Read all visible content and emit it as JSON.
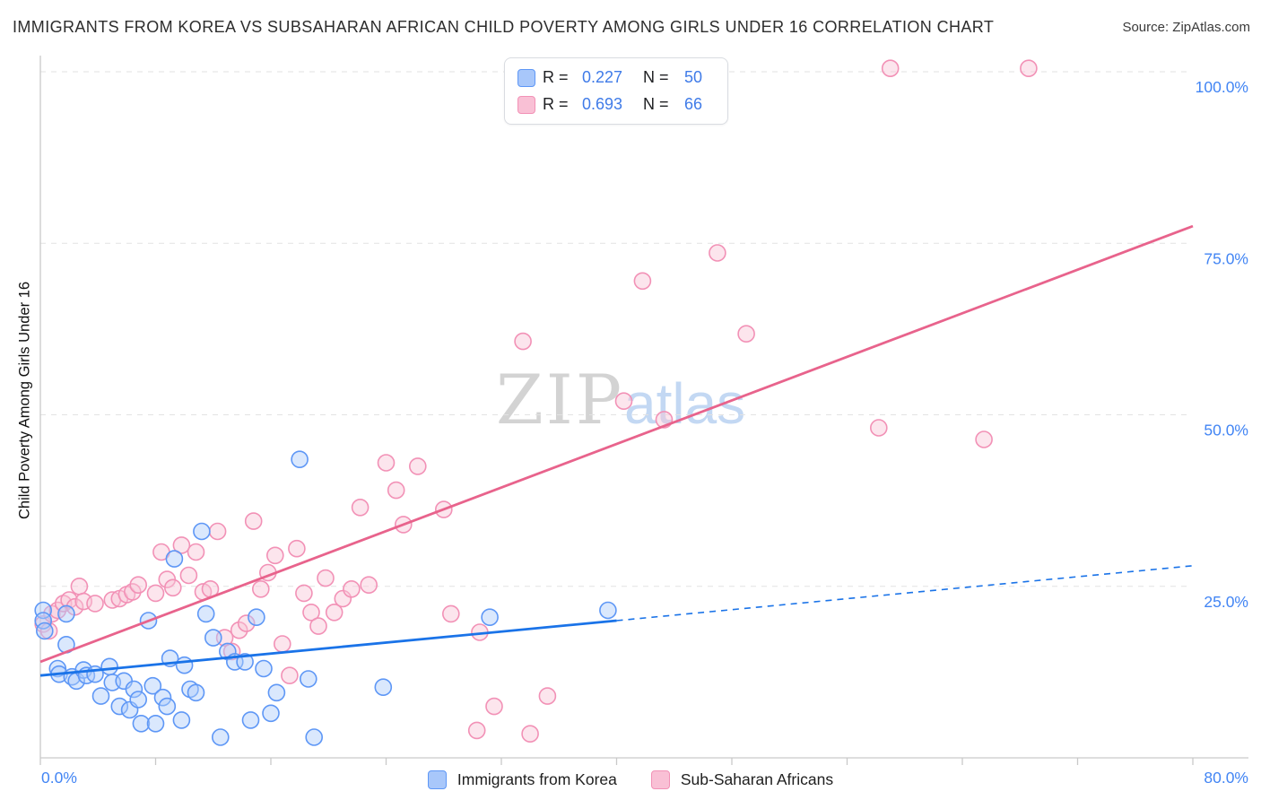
{
  "title": "IMMIGRANTS FROM KOREA VS SUBSAHARAN AFRICAN CHILD POVERTY AMONG GIRLS UNDER 16 CORRELATION CHART",
  "source": "Source: ZipAtlas.com",
  "watermark": {
    "zip": "ZIP",
    "atlas": "atlas"
  },
  "axes": {
    "y_label": "Child Poverty Among Girls Under 16",
    "x_min_label": "0.0%",
    "x_max_label": "80.0%"
  },
  "legend_box": {
    "r_label": "R =",
    "n_label": "N ="
  },
  "chart_data": {
    "type": "scatter",
    "title": "Immigrants from Korea vs Sub-Saharan African Child Poverty Among Girls Under 16",
    "xlabel": "Immigrants from Korea (%)",
    "ylabel": "Child Poverty Among Girls Under 16",
    "x_range": [
      0,
      0.8
    ],
    "y_range": [
      0,
      1.0
    ],
    "x_tick_count": 10,
    "grid": "horizontal-dashed",
    "legend_position": "top-center",
    "y_gridlines": [
      {
        "label": "100.0%",
        "value": 1.0
      },
      {
        "label": "75.0%",
        "value": 0.75
      },
      {
        "label": "50.0%",
        "value": 0.5
      },
      {
        "label": "25.0%",
        "value": 0.25
      }
    ],
    "series": [
      {
        "id": "korea",
        "name": "Immigrants from Korea",
        "r": "0.227",
        "n": "50",
        "fill_color": "#aecbfa",
        "stroke_color": "#5e97f6",
        "line_color": "#1a73e8",
        "trend": {
          "x0": 0,
          "y0": 0.12,
          "x1": 0.8,
          "y1": 0.28,
          "solid_until": 0.4
        },
        "points": [
          [
            0.002,
            0.215
          ],
          [
            0.002,
            0.2
          ],
          [
            0.003,
            0.185
          ],
          [
            0.012,
            0.13
          ],
          [
            0.013,
            0.122
          ],
          [
            0.018,
            0.21
          ],
          [
            0.018,
            0.165
          ],
          [
            0.022,
            0.118
          ],
          [
            0.025,
            0.112
          ],
          [
            0.03,
            0.128
          ],
          [
            0.032,
            0.12
          ],
          [
            0.038,
            0.122
          ],
          [
            0.042,
            0.09
          ],
          [
            0.048,
            0.133
          ],
          [
            0.05,
            0.11
          ],
          [
            0.055,
            0.075
          ],
          [
            0.058,
            0.112
          ],
          [
            0.062,
            0.07
          ],
          [
            0.065,
            0.1
          ],
          [
            0.068,
            0.085
          ],
          [
            0.07,
            0.05
          ],
          [
            0.075,
            0.2
          ],
          [
            0.078,
            0.105
          ],
          [
            0.08,
            0.05
          ],
          [
            0.085,
            0.088
          ],
          [
            0.088,
            0.075
          ],
          [
            0.09,
            0.145
          ],
          [
            0.093,
            0.29
          ],
          [
            0.098,
            0.055
          ],
          [
            0.1,
            0.135
          ],
          [
            0.104,
            0.1
          ],
          [
            0.108,
            0.095
          ],
          [
            0.112,
            0.33
          ],
          [
            0.115,
            0.21
          ],
          [
            0.12,
            0.175
          ],
          [
            0.125,
            0.03
          ],
          [
            0.13,
            0.155
          ],
          [
            0.135,
            0.14
          ],
          [
            0.142,
            0.14
          ],
          [
            0.146,
            0.055
          ],
          [
            0.15,
            0.205
          ],
          [
            0.155,
            0.13
          ],
          [
            0.16,
            0.065
          ],
          [
            0.164,
            0.095
          ],
          [
            0.18,
            0.435
          ],
          [
            0.186,
            0.115
          ],
          [
            0.19,
            0.03
          ],
          [
            0.238,
            0.103
          ],
          [
            0.312,
            0.205
          ],
          [
            0.394,
            0.215
          ]
        ]
      },
      {
        "id": "africa",
        "name": "Sub-Saharan Africans",
        "r": "0.693",
        "n": "66",
        "fill_color": "#f9c6d8",
        "stroke_color": "#f291b6",
        "line_color": "#e8638c",
        "trend": {
          "x0": 0,
          "y0": 0.14,
          "x1": 0.8,
          "y1": 0.775
        },
        "points": [
          [
            0.002,
            0.195
          ],
          [
            0.006,
            0.185
          ],
          [
            0.008,
            0.21
          ],
          [
            0.012,
            0.215
          ],
          [
            0.016,
            0.225
          ],
          [
            0.02,
            0.23
          ],
          [
            0.024,
            0.22
          ],
          [
            0.027,
            0.25
          ],
          [
            0.03,
            0.228
          ],
          [
            0.038,
            0.225
          ],
          [
            0.05,
            0.23
          ],
          [
            0.055,
            0.232
          ],
          [
            0.06,
            0.238
          ],
          [
            0.064,
            0.242
          ],
          [
            0.068,
            0.252
          ],
          [
            0.08,
            0.24
          ],
          [
            0.084,
            0.3
          ],
          [
            0.088,
            0.26
          ],
          [
            0.092,
            0.248
          ],
          [
            0.098,
            0.31
          ],
          [
            0.103,
            0.266
          ],
          [
            0.108,
            0.3
          ],
          [
            0.113,
            0.242
          ],
          [
            0.118,
            0.246
          ],
          [
            0.123,
            0.33
          ],
          [
            0.128,
            0.175
          ],
          [
            0.133,
            0.155
          ],
          [
            0.138,
            0.186
          ],
          [
            0.143,
            0.196
          ],
          [
            0.148,
            0.345
          ],
          [
            0.153,
            0.246
          ],
          [
            0.158,
            0.27
          ],
          [
            0.163,
            0.295
          ],
          [
            0.168,
            0.166
          ],
          [
            0.173,
            0.12
          ],
          [
            0.178,
            0.305
          ],
          [
            0.183,
            0.24
          ],
          [
            0.188,
            0.212
          ],
          [
            0.193,
            0.192
          ],
          [
            0.198,
            0.262
          ],
          [
            0.204,
            0.212
          ],
          [
            0.21,
            0.232
          ],
          [
            0.216,
            0.246
          ],
          [
            0.222,
            0.365
          ],
          [
            0.228,
            0.252
          ],
          [
            0.24,
            0.43
          ],
          [
            0.247,
            0.39
          ],
          [
            0.252,
            0.34
          ],
          [
            0.262,
            0.425
          ],
          [
            0.28,
            0.362
          ],
          [
            0.285,
            0.21
          ],
          [
            0.303,
            0.04
          ],
          [
            0.305,
            0.183
          ],
          [
            0.315,
            0.075
          ],
          [
            0.335,
            0.607
          ],
          [
            0.34,
            0.035
          ],
          [
            0.352,
            0.09
          ],
          [
            0.405,
            0.52
          ],
          [
            0.418,
            0.695
          ],
          [
            0.433,
            0.493
          ],
          [
            0.47,
            0.736
          ],
          [
            0.49,
            0.618
          ],
          [
            0.582,
            0.481
          ],
          [
            0.59,
            1.005
          ],
          [
            0.655,
            0.464
          ],
          [
            0.686,
            1.005
          ]
        ]
      }
    ]
  }
}
